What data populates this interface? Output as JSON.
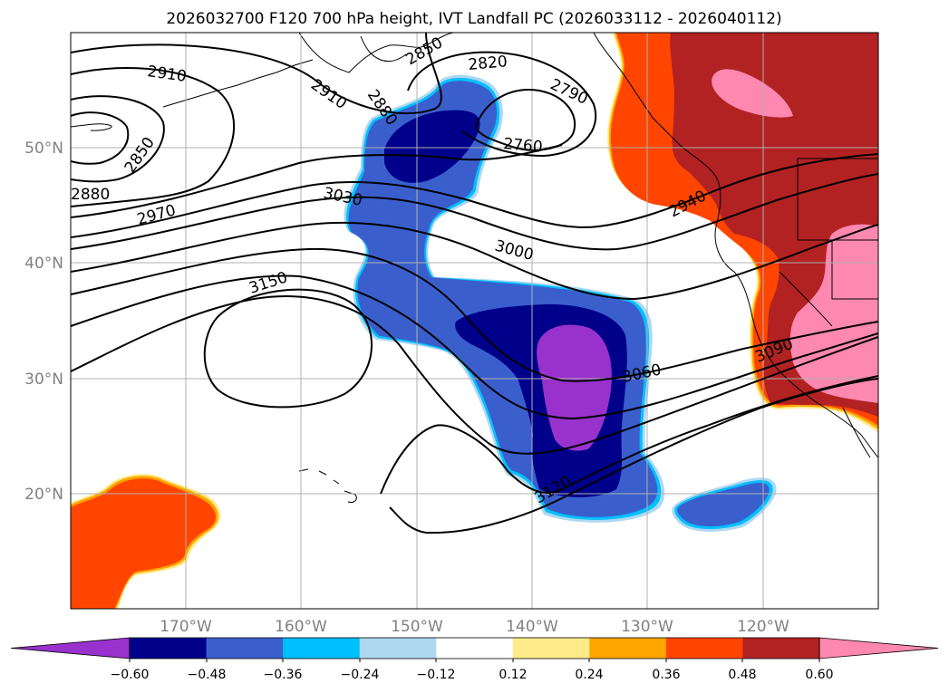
{
  "title": "2026032700 F120 700 hPa height, IVT Landfall PC (2026033112 - 2026040112)",
  "longitude_ticks": [
    "170°W",
    "160°W",
    "150°W",
    "140°W",
    "130°W",
    "120°W"
  ],
  "latitude_ticks": [
    "50°N",
    "40°N",
    "30°N",
    "20°N"
  ],
  "colorbar": {
    "tick_labels": [
      "−0.60",
      "−0.48",
      "−0.36",
      "−0.24",
      "−0.12",
      "0.12",
      "0.24",
      "0.36",
      "0.48",
      "0.60"
    ],
    "colors": [
      "#9932CC",
      "#00008B",
      "#3A5FCD",
      "#00BFFF",
      "#ADD8F0",
      "#FFFFFF",
      "#FFEB8A",
      "#FFA500",
      "#FF4500",
      "#B22222",
      "#FF88B0"
    ],
    "extend": "both"
  },
  "contour_labels": [
    "2910",
    "2850",
    "2880",
    "2970",
    "3030",
    "3150",
    "2910",
    "2880",
    "2850",
    "2820",
    "2790",
    "2760",
    "3000",
    "2940",
    "3060",
    "3090",
    "3120"
  ],
  "colors": {
    "contour": "#000000",
    "grid": "#b0b0b0",
    "coast": "#000000"
  }
}
